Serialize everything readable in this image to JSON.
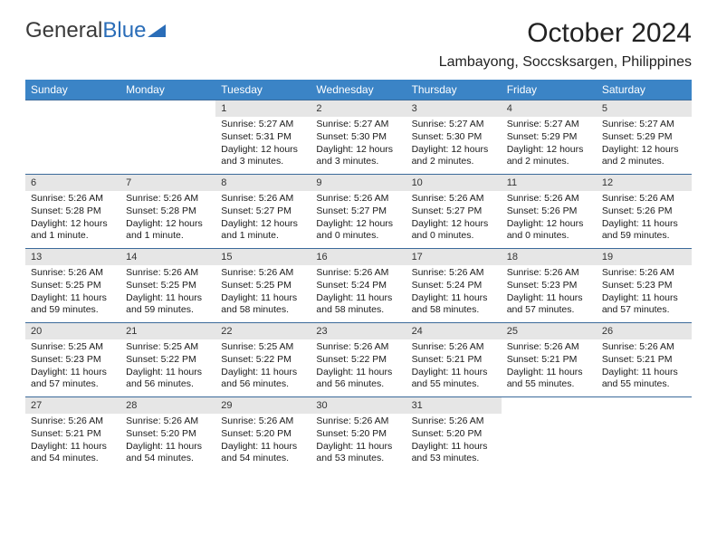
{
  "brand": {
    "name1": "General",
    "name2": "Blue"
  },
  "title": "October 2024",
  "location": "Lambayong, Soccsksargen, Philippines",
  "colors": {
    "header_bg": "#3b84c6",
    "header_text": "#ffffff",
    "daynum_bg": "#e6e6e6",
    "border": "#3b6a9a",
    "brand_blue": "#2a6db8"
  },
  "daysOfWeek": [
    "Sunday",
    "Monday",
    "Tuesday",
    "Wednesday",
    "Thursday",
    "Friday",
    "Saturday"
  ],
  "leadingBlanks": 2,
  "days": [
    {
      "n": 1,
      "sunrise": "5:27 AM",
      "sunset": "5:31 PM",
      "daylight": "12 hours and 3 minutes."
    },
    {
      "n": 2,
      "sunrise": "5:27 AM",
      "sunset": "5:30 PM",
      "daylight": "12 hours and 3 minutes."
    },
    {
      "n": 3,
      "sunrise": "5:27 AM",
      "sunset": "5:30 PM",
      "daylight": "12 hours and 2 minutes."
    },
    {
      "n": 4,
      "sunrise": "5:27 AM",
      "sunset": "5:29 PM",
      "daylight": "12 hours and 2 minutes."
    },
    {
      "n": 5,
      "sunrise": "5:27 AM",
      "sunset": "5:29 PM",
      "daylight": "12 hours and 2 minutes."
    },
    {
      "n": 6,
      "sunrise": "5:26 AM",
      "sunset": "5:28 PM",
      "daylight": "12 hours and 1 minute."
    },
    {
      "n": 7,
      "sunrise": "5:26 AM",
      "sunset": "5:28 PM",
      "daylight": "12 hours and 1 minute."
    },
    {
      "n": 8,
      "sunrise": "5:26 AM",
      "sunset": "5:27 PM",
      "daylight": "12 hours and 1 minute."
    },
    {
      "n": 9,
      "sunrise": "5:26 AM",
      "sunset": "5:27 PM",
      "daylight": "12 hours and 0 minutes."
    },
    {
      "n": 10,
      "sunrise": "5:26 AM",
      "sunset": "5:27 PM",
      "daylight": "12 hours and 0 minutes."
    },
    {
      "n": 11,
      "sunrise": "5:26 AM",
      "sunset": "5:26 PM",
      "daylight": "12 hours and 0 minutes."
    },
    {
      "n": 12,
      "sunrise": "5:26 AM",
      "sunset": "5:26 PM",
      "daylight": "11 hours and 59 minutes."
    },
    {
      "n": 13,
      "sunrise": "5:26 AM",
      "sunset": "5:25 PM",
      "daylight": "11 hours and 59 minutes."
    },
    {
      "n": 14,
      "sunrise": "5:26 AM",
      "sunset": "5:25 PM",
      "daylight": "11 hours and 59 minutes."
    },
    {
      "n": 15,
      "sunrise": "5:26 AM",
      "sunset": "5:25 PM",
      "daylight": "11 hours and 58 minutes."
    },
    {
      "n": 16,
      "sunrise": "5:26 AM",
      "sunset": "5:24 PM",
      "daylight": "11 hours and 58 minutes."
    },
    {
      "n": 17,
      "sunrise": "5:26 AM",
      "sunset": "5:24 PM",
      "daylight": "11 hours and 58 minutes."
    },
    {
      "n": 18,
      "sunrise": "5:26 AM",
      "sunset": "5:23 PM",
      "daylight": "11 hours and 57 minutes."
    },
    {
      "n": 19,
      "sunrise": "5:26 AM",
      "sunset": "5:23 PM",
      "daylight": "11 hours and 57 minutes."
    },
    {
      "n": 20,
      "sunrise": "5:25 AM",
      "sunset": "5:23 PM",
      "daylight": "11 hours and 57 minutes."
    },
    {
      "n": 21,
      "sunrise": "5:25 AM",
      "sunset": "5:22 PM",
      "daylight": "11 hours and 56 minutes."
    },
    {
      "n": 22,
      "sunrise": "5:25 AM",
      "sunset": "5:22 PM",
      "daylight": "11 hours and 56 minutes."
    },
    {
      "n": 23,
      "sunrise": "5:26 AM",
      "sunset": "5:22 PM",
      "daylight": "11 hours and 56 minutes."
    },
    {
      "n": 24,
      "sunrise": "5:26 AM",
      "sunset": "5:21 PM",
      "daylight": "11 hours and 55 minutes."
    },
    {
      "n": 25,
      "sunrise": "5:26 AM",
      "sunset": "5:21 PM",
      "daylight": "11 hours and 55 minutes."
    },
    {
      "n": 26,
      "sunrise": "5:26 AM",
      "sunset": "5:21 PM",
      "daylight": "11 hours and 55 minutes."
    },
    {
      "n": 27,
      "sunrise": "5:26 AM",
      "sunset": "5:21 PM",
      "daylight": "11 hours and 54 minutes."
    },
    {
      "n": 28,
      "sunrise": "5:26 AM",
      "sunset": "5:20 PM",
      "daylight": "11 hours and 54 minutes."
    },
    {
      "n": 29,
      "sunrise": "5:26 AM",
      "sunset": "5:20 PM",
      "daylight": "11 hours and 54 minutes."
    },
    {
      "n": 30,
      "sunrise": "5:26 AM",
      "sunset": "5:20 PM",
      "daylight": "11 hours and 53 minutes."
    },
    {
      "n": 31,
      "sunrise": "5:26 AM",
      "sunset": "5:20 PM",
      "daylight": "11 hours and 53 minutes."
    }
  ],
  "labels": {
    "sunrise": "Sunrise:",
    "sunset": "Sunset:",
    "daylight": "Daylight:"
  }
}
